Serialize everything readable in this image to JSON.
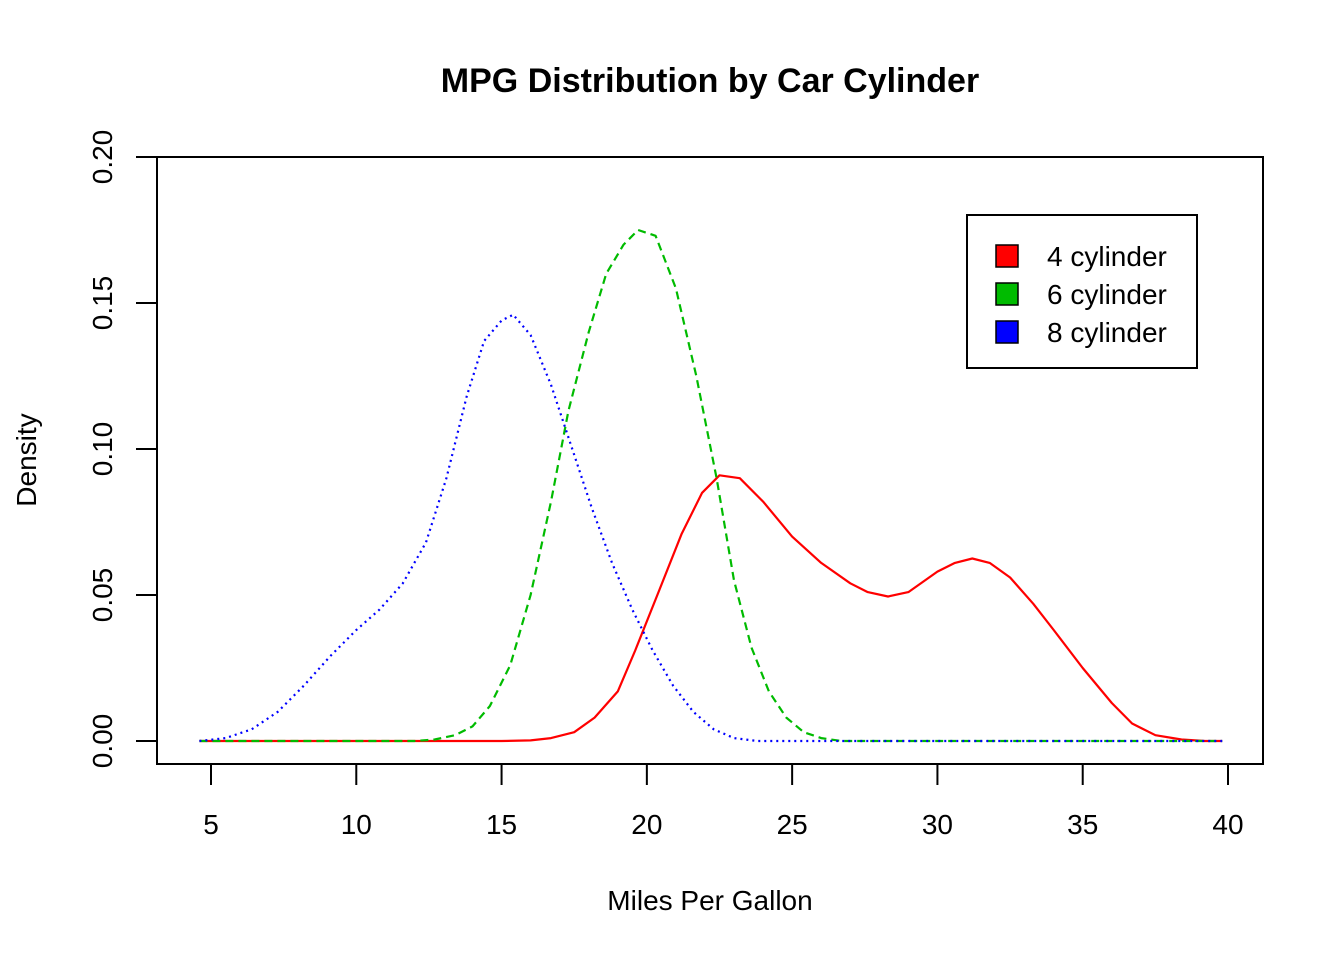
{
  "chart_data": {
    "type": "line",
    "title": "MPG Distribution by Car Cylinder",
    "xlabel": "Miles Per Gallon",
    "ylabel": "Density",
    "xlim": [
      4.5,
      40
    ],
    "ylim": [
      0,
      0.2
    ],
    "x_ticks": [
      5,
      10,
      15,
      20,
      25,
      30,
      35,
      40
    ],
    "y_ticks": [
      0.0,
      0.05,
      0.1,
      0.15,
      0.2
    ],
    "y_tick_labels": [
      "0.00",
      "0.05",
      "0.10",
      "0.15",
      "0.20"
    ],
    "x_tick_labels": [
      "5",
      "10",
      "15",
      "20",
      "25",
      "30",
      "35",
      "40"
    ],
    "legend": {
      "position": "top-right",
      "entries": [
        "4 cylinder",
        "6 cylinder",
        "8 cylinder"
      ]
    },
    "series": [
      {
        "name": "4 cylinder",
        "color": "#ff0000",
        "dash": "solid",
        "x": [
          4.6,
          12.0,
          15.0,
          16.0,
          16.7,
          17.5,
          18.2,
          19.0,
          19.6,
          20.4,
          21.2,
          21.9,
          22.5,
          23.2,
          24.0,
          25.0,
          26.0,
          27.0,
          27.6,
          28.3,
          29.0,
          30.0,
          30.6,
          31.2,
          31.8,
          32.5,
          33.3,
          34.0,
          35.0,
          36.0,
          36.7,
          37.5,
          38.4,
          39.2,
          39.8
        ],
        "y": [
          0.0,
          0.0,
          0.0,
          0.0002,
          0.001,
          0.003,
          0.008,
          0.017,
          0.031,
          0.051,
          0.071,
          0.085,
          0.091,
          0.09,
          0.082,
          0.07,
          0.061,
          0.054,
          0.051,
          0.0495,
          0.051,
          0.058,
          0.061,
          0.0625,
          0.061,
          0.056,
          0.047,
          0.038,
          0.025,
          0.013,
          0.006,
          0.002,
          0.0005,
          0.0,
          0.0
        ]
      },
      {
        "name": "6 cylinder",
        "color": "#00bb00",
        "dash": "dashed",
        "x": [
          4.6,
          12.0,
          12.7,
          13.4,
          14.0,
          14.6,
          15.3,
          16.0,
          16.7,
          17.3,
          18.0,
          18.6,
          19.2,
          19.7,
          20.3,
          21.0,
          21.7,
          22.4,
          23.0,
          23.6,
          24.2,
          24.8,
          25.4,
          26.0,
          26.7,
          30.0,
          35.0,
          39.8
        ],
        "y": [
          0.0,
          0.0,
          0.0005,
          0.002,
          0.005,
          0.012,
          0.026,
          0.05,
          0.082,
          0.113,
          0.14,
          0.16,
          0.17,
          0.175,
          0.173,
          0.155,
          0.125,
          0.09,
          0.055,
          0.032,
          0.017,
          0.008,
          0.003,
          0.001,
          0.0,
          0.0,
          0.0,
          0.0
        ]
      },
      {
        "name": "8 cylinder",
        "color": "#0000ff",
        "dash": "dotted",
        "x": [
          4.6,
          5.5,
          6.4,
          7.3,
          8.2,
          9.1,
          10.0,
          10.8,
          11.6,
          12.4,
          13.1,
          13.8,
          14.4,
          15.0,
          15.4,
          16.0,
          16.7,
          17.4,
          18.1,
          18.8,
          19.5,
          20.2,
          20.9,
          21.6,
          22.3,
          23.0,
          23.8,
          25.0,
          30.0,
          35.0,
          39.8
        ],
        "y": [
          0.0,
          0.001,
          0.004,
          0.01,
          0.019,
          0.029,
          0.038,
          0.045,
          0.054,
          0.068,
          0.09,
          0.118,
          0.137,
          0.144,
          0.146,
          0.139,
          0.122,
          0.101,
          0.08,
          0.061,
          0.045,
          0.031,
          0.019,
          0.01,
          0.004,
          0.001,
          0.0,
          0.0,
          0.0,
          0.0,
          0.0
        ]
      }
    ]
  }
}
